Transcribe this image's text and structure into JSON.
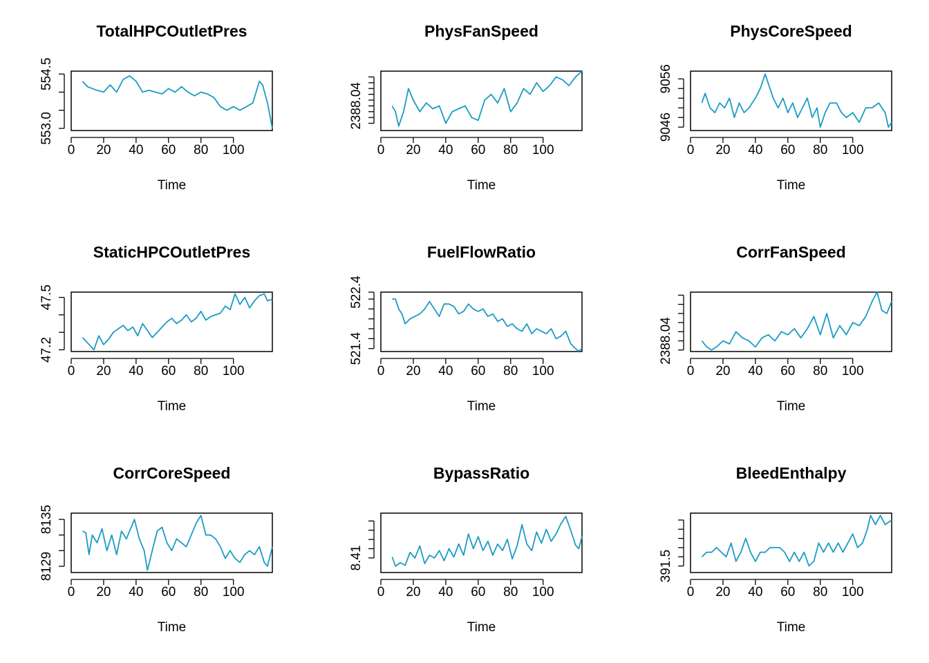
{
  "series_color": "#1a9bc3",
  "chart_data": [
    {
      "type": "line",
      "title": "TotalHPCOutletPres",
      "xlabel": "Time",
      "ylabel": "",
      "xlim": [
        0,
        124
      ],
      "ylim": [
        552.94,
        554.58
      ],
      "x_ticks": [
        0,
        20,
        40,
        60,
        80,
        100
      ],
      "y_ticks": [
        553.0,
        553.5,
        554.0,
        554.5
      ],
      "y_tick_labels": [
        "553.0",
        "",
        "",
        "554.5"
      ],
      "series": [
        {
          "x": [
            7,
            10,
            13,
            16,
            20,
            24,
            28,
            32,
            36,
            40,
            44,
            48,
            52,
            56,
            60,
            64,
            68,
            72,
            76,
            80,
            84,
            88,
            92,
            96,
            100,
            104,
            108,
            112,
            116,
            118,
            121,
            124
          ],
          "y": [
            554.3,
            554.15,
            554.1,
            554.05,
            554.0,
            554.2,
            554.0,
            554.35,
            554.45,
            554.3,
            554.0,
            554.05,
            554.0,
            553.95,
            554.1,
            554.0,
            554.15,
            554.0,
            553.9,
            554.0,
            553.95,
            553.85,
            553.6,
            553.5,
            553.6,
            553.5,
            553.6,
            553.7,
            554.3,
            554.2,
            553.7,
            553.0
          ]
        }
      ]
    },
    {
      "type": "line",
      "title": "PhysFanSpeed",
      "xlabel": "Time",
      "ylabel": "",
      "xlim": [
        0,
        124
      ],
      "ylim": [
        2387.955,
        2388.16
      ],
      "x_ticks": [
        0,
        20,
        40,
        60,
        80,
        100
      ],
      "y_ticks": [
        2387.98,
        2388.0,
        2388.02,
        2388.04,
        2388.06,
        2388.08,
        2388.1,
        2388.12,
        2388.14
      ],
      "y_tick_labels": [
        "",
        "",
        "",
        "2388.04",
        "",
        "",
        "",
        "",
        ""
      ],
      "series": [
        {
          "x": [
            7,
            9,
            11,
            14,
            17,
            20,
            24,
            28,
            32,
            36,
            40,
            44,
            48,
            52,
            56,
            60,
            64,
            68,
            72,
            76,
            80,
            84,
            88,
            92,
            96,
            100,
            104,
            108,
            112,
            116,
            120,
            124
          ],
          "y": [
            2388.04,
            2388.02,
            2387.97,
            2388.02,
            2388.1,
            2388.06,
            2388.02,
            2388.05,
            2388.03,
            2388.04,
            2387.98,
            2388.02,
            2388.03,
            2388.04,
            2388.0,
            2387.99,
            2388.06,
            2388.08,
            2388.05,
            2388.1,
            2388.02,
            2388.05,
            2388.1,
            2388.08,
            2388.12,
            2388.09,
            2388.11,
            2388.14,
            2388.13,
            2388.11,
            2388.14,
            2388.16
          ]
        }
      ]
    },
    {
      "type": "line",
      "title": "PhysCoreSpeed",
      "xlabel": "Time",
      "ylabel": "",
      "xlim": [
        0,
        124
      ],
      "ylim": [
        9045.3,
        9057.6
      ],
      "x_ticks": [
        0,
        20,
        40,
        60,
        80,
        100
      ],
      "y_ticks": [
        9046,
        9048,
        9050,
        9052,
        9054,
        9056
      ],
      "y_tick_labels": [
        "9046",
        "",
        "",
        "",
        "",
        "9056"
      ],
      "series": [
        {
          "x": [
            7,
            9,
            12,
            15,
            18,
            21,
            24,
            27,
            30,
            33,
            36,
            40,
            43,
            46,
            48,
            51,
            54,
            57,
            60,
            63,
            66,
            69,
            72,
            75,
            78,
            80,
            83,
            86,
            90,
            93,
            96,
            100,
            104,
            108,
            112,
            116,
            120,
            122,
            124
          ],
          "y": [
            9051,
            9053,
            9050,
            9049,
            9051,
            9050,
            9052,
            9048,
            9051,
            9049,
            9050,
            9052,
            9054,
            9057,
            9055,
            9052,
            9050,
            9052,
            9049,
            9051,
            9048,
            9050,
            9052,
            9048,
            9050,
            9046,
            9049,
            9051,
            9051,
            9049,
            9048,
            9049,
            9047,
            9050,
            9050,
            9051,
            9049,
            9046,
            9047
          ]
        }
      ]
    },
    {
      "type": "line",
      "title": "StaticHPCOutletPres",
      "xlabel": "Time",
      "ylabel": "",
      "xlim": [
        0,
        124
      ],
      "ylim": [
        47.19,
        47.53
      ],
      "x_ticks": [
        0,
        20,
        40,
        60,
        80,
        100
      ],
      "y_ticks": [
        47.2,
        47.3,
        47.4,
        47.5
      ],
      "y_tick_labels": [
        "47.2",
        "",
        "",
        "47.5"
      ],
      "series": [
        {
          "x": [
            7,
            9,
            12,
            14,
            17,
            20,
            23,
            26,
            29,
            32,
            35,
            38,
            41,
            44,
            47,
            50,
            53,
            56,
            59,
            62,
            65,
            68,
            71,
            74,
            77,
            80,
            83,
            86,
            89,
            92,
            95,
            98,
            101,
            104,
            107,
            110,
            113,
            116,
            119,
            121,
            124
          ],
          "y": [
            47.27,
            47.25,
            47.22,
            47.2,
            47.28,
            47.23,
            47.26,
            47.3,
            47.32,
            47.34,
            47.31,
            47.33,
            47.28,
            47.35,
            47.31,
            47.27,
            47.3,
            47.33,
            47.36,
            47.38,
            47.35,
            47.37,
            47.4,
            47.36,
            47.38,
            47.42,
            47.37,
            47.39,
            47.4,
            47.41,
            47.45,
            47.43,
            47.52,
            47.46,
            47.5,
            47.44,
            47.48,
            47.51,
            47.52,
            47.48,
            47.49
          ]
        }
      ]
    },
    {
      "type": "line",
      "title": "FuelFlowRatio",
      "xlabel": "Time",
      "ylabel": "",
      "xlim": [
        0,
        124
      ],
      "ylim": [
        521.14,
        522.34
      ],
      "x_ticks": [
        0,
        20,
        40,
        60,
        80,
        100
      ],
      "y_ticks": [
        521.2,
        521.4,
        521.6,
        521.8,
        522.0,
        522.2,
        522.4
      ],
      "y_tick_labels": [
        "521.4",
        "",
        "",
        "",
        "",
        "",
        "522.4"
      ],
      "series": [
        {
          "x": [
            7,
            9,
            11,
            13,
            15,
            18,
            21,
            24,
            27,
            30,
            33,
            36,
            39,
            42,
            45,
            48,
            51,
            54,
            57,
            60,
            63,
            66,
            69,
            72,
            75,
            78,
            81,
            84,
            87,
            90,
            93,
            96,
            99,
            102,
            105,
            108,
            111,
            114,
            117,
            120,
            122,
            124
          ],
          "y": [
            522.2,
            522.2,
            522.0,
            521.9,
            521.7,
            521.8,
            521.85,
            521.9,
            522.0,
            522.15,
            522.0,
            521.85,
            522.1,
            522.1,
            522.05,
            521.9,
            521.95,
            522.1,
            522.0,
            521.95,
            522.0,
            521.85,
            521.9,
            521.75,
            521.8,
            521.65,
            521.7,
            521.6,
            521.55,
            521.7,
            521.5,
            521.6,
            521.55,
            521.5,
            521.6,
            521.4,
            521.45,
            521.55,
            521.3,
            521.2,
            521.15,
            521.2
          ]
        }
      ]
    },
    {
      "type": "line",
      "title": "CorrFanSpeed",
      "xlabel": "Time",
      "ylabel": "",
      "xlim": [
        0,
        124
      ],
      "ylim": [
        2388.005,
        2388.2
      ],
      "x_ticks": [
        0,
        20,
        40,
        60,
        80,
        100
      ],
      "y_ticks": [
        2388.01,
        2388.04,
        2388.07,
        2388.1,
        2388.13,
        2388.16,
        2388.19
      ],
      "y_tick_labels": [
        "",
        "2388.04",
        "",
        "",
        "",
        "",
        ""
      ],
      "series": [
        {
          "x": [
            7,
            10,
            13,
            16,
            20,
            24,
            28,
            32,
            36,
            40,
            44,
            48,
            52,
            56,
            60,
            64,
            68,
            72,
            76,
            80,
            84,
            88,
            92,
            96,
            100,
            104,
            108,
            112,
            115,
            118,
            121,
            124
          ],
          "y": [
            2388.04,
            2388.02,
            2388.01,
            2388.02,
            2388.04,
            2388.03,
            2388.07,
            2388.05,
            2388.04,
            2388.02,
            2388.05,
            2388.06,
            2388.04,
            2388.07,
            2388.06,
            2388.08,
            2388.05,
            2388.08,
            2388.12,
            2388.06,
            2388.13,
            2388.05,
            2388.09,
            2388.06,
            2388.1,
            2388.09,
            2388.12,
            2388.17,
            2388.2,
            2388.14,
            2388.13,
            2388.17
          ]
        }
      ]
    },
    {
      "type": "line",
      "title": "CorrCoreSpeed",
      "xlabel": "Time",
      "ylabel": "",
      "xlim": [
        0,
        124
      ],
      "ylim": [
        8128.2,
        8135.8
      ],
      "x_ticks": [
        0,
        20,
        40,
        60,
        80,
        100
      ],
      "y_ticks": [
        8129,
        8131,
        8133,
        8135
      ],
      "y_tick_labels": [
        "8129",
        "",
        "",
        "8135"
      ],
      "series": [
        {
          "x": [
            7,
            9,
            11,
            13,
            16,
            19,
            22,
            25,
            28,
            31,
            34,
            37,
            39,
            42,
            45,
            47,
            50,
            53,
            56,
            59,
            62,
            65,
            68,
            71,
            74,
            77,
            80,
            83,
            86,
            89,
            92,
            95,
            98,
            101,
            104,
            107,
            110,
            113,
            116,
            119,
            121,
            124
          ],
          "y": [
            8133.5,
            8133.3,
            8130.5,
            8133.0,
            8132.0,
            8133.8,
            8131.0,
            8133.0,
            8130.5,
            8133.5,
            8132.5,
            8134.0,
            8135.0,
            8132.5,
            8131.0,
            8128.5,
            8131.0,
            8133.5,
            8134.0,
            8132.0,
            8131.0,
            8132.5,
            8132.0,
            8131.5,
            8133.0,
            8134.5,
            8135.5,
            8133.0,
            8133.0,
            8132.5,
            8131.5,
            8130.0,
            8131.0,
            8130.0,
            8129.5,
            8130.5,
            8131.0,
            8130.5,
            8131.5,
            8129.5,
            8129.0,
            8131.5
          ]
        }
      ]
    },
    {
      "type": "line",
      "title": "BypassRatio",
      "xlabel": "Time",
      "ylabel": "",
      "xlim": [
        0,
        124
      ],
      "ylim": [
        8.3942,
        8.4585
      ],
      "x_ticks": [
        0,
        20,
        40,
        60,
        80,
        100
      ],
      "y_ticks": [
        8.41,
        8.42,
        8.43,
        8.44,
        8.45
      ],
      "y_tick_labels": [
        "8.41",
        "",
        "",
        "",
        ""
      ],
      "series": [
        {
          "x": [
            7,
            9,
            12,
            15,
            18,
            21,
            24,
            27,
            30,
            33,
            36,
            39,
            42,
            45,
            48,
            51,
            54,
            57,
            60,
            63,
            66,
            69,
            72,
            75,
            78,
            81,
            84,
            87,
            90,
            93,
            96,
            99,
            102,
            105,
            108,
            111,
            114,
            117,
            120,
            122,
            124
          ],
          "y": [
            8.411,
            8.401,
            8.405,
            8.402,
            8.416,
            8.41,
            8.423,
            8.404,
            8.413,
            8.41,
            8.418,
            8.407,
            8.42,
            8.411,
            8.425,
            8.413,
            8.436,
            8.42,
            8.433,
            8.418,
            8.428,
            8.413,
            8.425,
            8.418,
            8.43,
            8.409,
            8.423,
            8.446,
            8.425,
            8.418,
            8.438,
            8.426,
            8.441,
            8.428,
            8.436,
            8.447,
            8.455,
            8.44,
            8.424,
            8.42,
            8.433
          ]
        }
      ]
    },
    {
      "type": "line",
      "title": "BleedEnthalpy",
      "xlabel": "Time",
      "ylabel": "",
      "xlim": [
        0,
        124
      ],
      "ylim": [
        390.79,
        397.25
      ],
      "x_ticks": [
        0,
        20,
        40,
        60,
        80,
        100
      ],
      "y_ticks": [
        391.5,
        392.5,
        393.5,
        394.5,
        395.5,
        396.5
      ],
      "y_tick_labels": [
        "391.5",
        "",
        "",
        "",
        "",
        ""
      ],
      "series": [
        {
          "x": [
            7,
            10,
            13,
            16,
            19,
            22,
            25,
            28,
            31,
            34,
            37,
            40,
            43,
            46,
            49,
            52,
            55,
            58,
            61,
            64,
            67,
            70,
            73,
            76,
            79,
            82,
            85,
            88,
            91,
            94,
            97,
            100,
            103,
            106,
            109,
            111,
            114,
            117,
            120,
            124
          ],
          "y": [
            392.5,
            393.0,
            393.0,
            393.5,
            393.0,
            392.5,
            394.0,
            392.0,
            393.0,
            394.5,
            393.0,
            392.0,
            393.0,
            393.0,
            393.5,
            393.5,
            393.5,
            393.0,
            392.0,
            393.0,
            392.0,
            393.0,
            391.5,
            392.0,
            394.0,
            393.0,
            394.0,
            393.0,
            394.0,
            393.0,
            394.0,
            395.0,
            393.5,
            394.0,
            395.5,
            397.0,
            396.0,
            397.0,
            396.0,
            396.5
          ]
        }
      ]
    }
  ]
}
